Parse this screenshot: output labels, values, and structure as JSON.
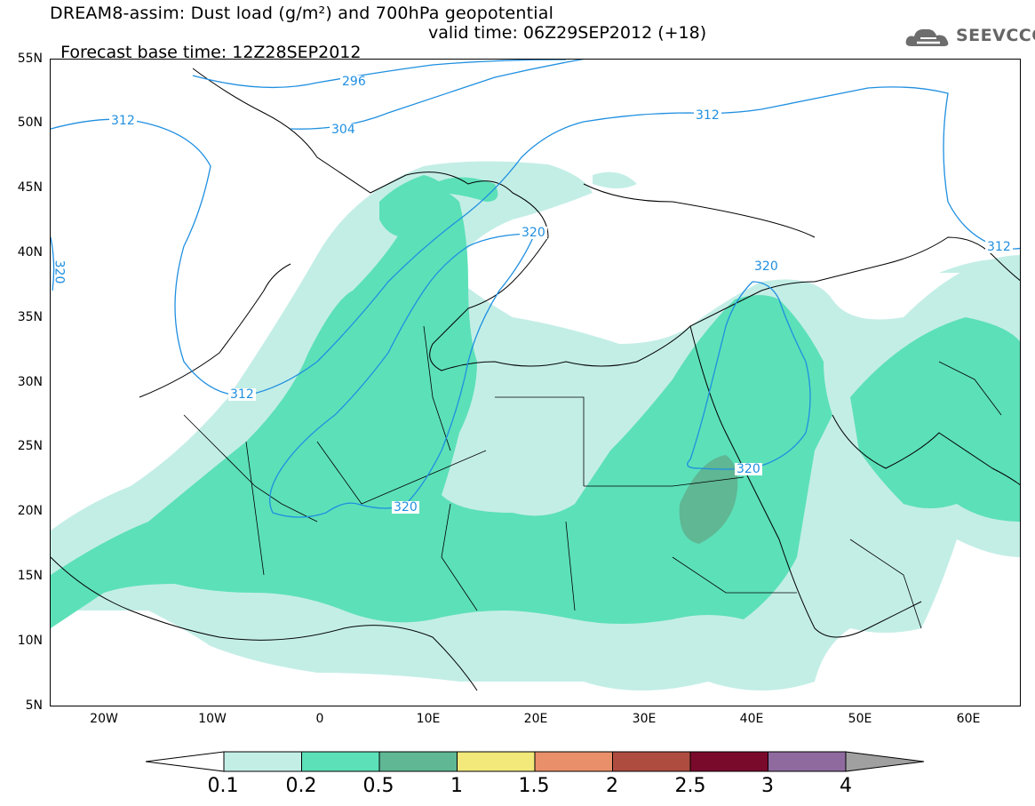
{
  "header": {
    "title_line1": "DREAM8-assim: Dust load (g/m²) and 700hPa geopotential",
    "title_line2_base": "Forecast base time: 12Z28SEP2012",
    "title_line2_valid": "valid time: 06Z29SEP2012 (+18)",
    "logo_text": "SEEVCCC"
  },
  "map": {
    "lat_labels": [
      "55N",
      "50N",
      "45N",
      "40N",
      "35N",
      "30N",
      "25N",
      "20N",
      "15N",
      "10N",
      "5N"
    ],
    "lon_labels": [
      "20W",
      "10W",
      "0",
      "10E",
      "20E",
      "30E",
      "40E",
      "50E",
      "60E"
    ],
    "contour_labels": [
      "296",
      "304",
      "312",
      "312",
      "312",
      "312",
      "320",
      "320",
      "320",
      "320",
      "320"
    ],
    "colors": {
      "land_outline": "#000000",
      "contour": "#1f8fe0",
      "dust_0_1": "#c3eee6",
      "dust_0_2": "#5ce0b8",
      "dust_0_5": "#5fb794"
    }
  },
  "colorbar": {
    "ticks": [
      "0.1",
      "0.2",
      "0.5",
      "1",
      "1.5",
      "2",
      "2.5",
      "3",
      "4"
    ],
    "colors": [
      "#ffffff",
      "#c3eee6",
      "#5ce0b8",
      "#5fb794",
      "#f2e97a",
      "#e98f69",
      "#ad4c3f",
      "#7a0a2c",
      "#8e6a9e",
      "#a0a0a0"
    ]
  }
}
